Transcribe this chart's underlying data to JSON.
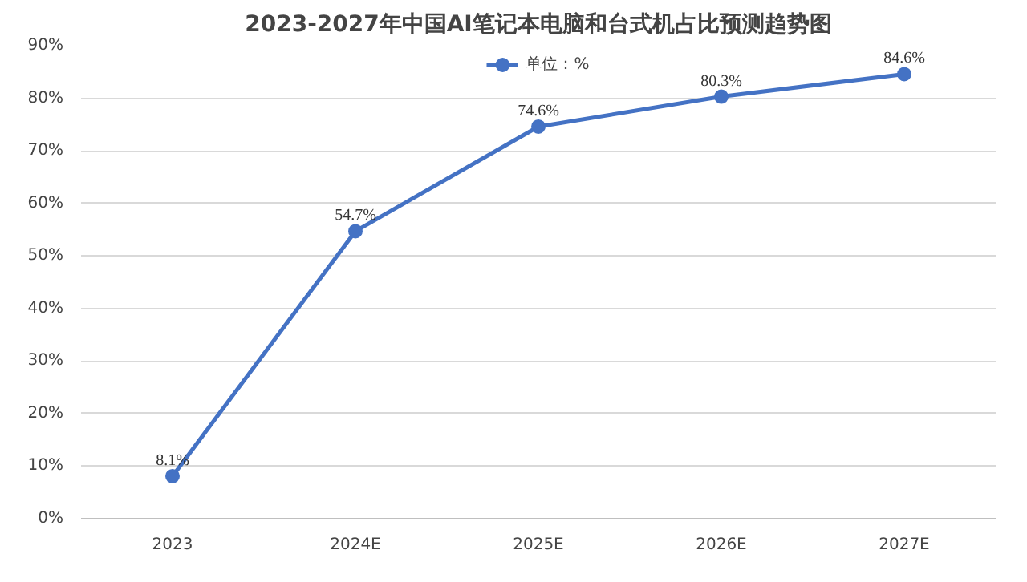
{
  "chart_data": {
    "type": "line",
    "title": "2023-2027年中国AI笔记本电脑和台式机占比预测趋势图",
    "categories": [
      "2023",
      "2024E",
      "2025E",
      "2026E",
      "2027E"
    ],
    "series": [
      {
        "name": "单位：%",
        "color": "#4472c4",
        "values": [
          8.1,
          54.7,
          74.6,
          80.3,
          84.6
        ],
        "value_labels": [
          "8.1%",
          "54.7%",
          "74.6%",
          "80.3%",
          "84.6%"
        ]
      }
    ],
    "ylim": [
      0,
      90
    ],
    "yticks": [
      {
        "value": 0,
        "label": "0%"
      },
      {
        "value": 10,
        "label": "10%"
      },
      {
        "value": 20,
        "label": "20%"
      },
      {
        "value": 30,
        "label": "30%"
      },
      {
        "value": 40,
        "label": "40%"
      },
      {
        "value": 50,
        "label": "50%"
      },
      {
        "value": 60,
        "label": "60%"
      },
      {
        "value": 70,
        "label": "70%"
      },
      {
        "value": 80,
        "label": "80%"
      },
      {
        "value": 90,
        "label": "90%"
      }
    ],
    "grid": "y",
    "legend": "top",
    "marker": "circle",
    "line_style": "solid"
  }
}
